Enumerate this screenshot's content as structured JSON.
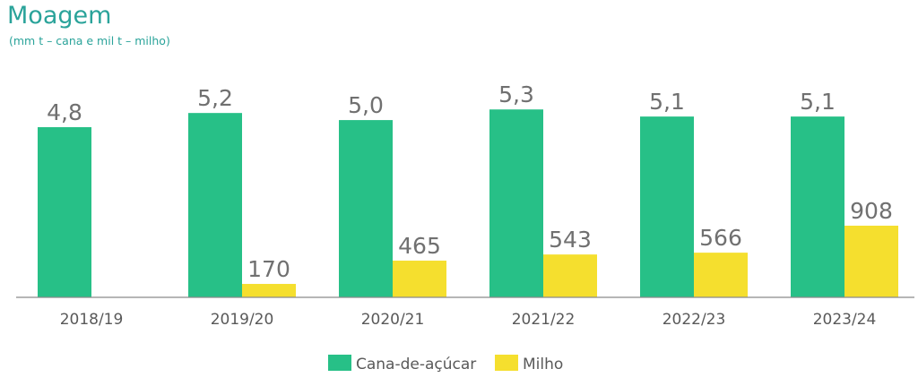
{
  "chart_data": {
    "type": "bar",
    "title": "Moagem",
    "subtitle": "(mm t – cana e mil t – milho)",
    "categories": [
      "2018/19",
      "2019/20",
      "2020/21",
      "2021/22",
      "2022/23",
      "2023/24"
    ],
    "series": [
      {
        "name": "Cana-de-açúcar",
        "color": "#27c087",
        "values": [
          4.8,
          5.2,
          5.0,
          5.3,
          5.1,
          5.1
        ],
        "labels": [
          "4,8",
          "5,2",
          "5,0",
          "5,3",
          "5,1",
          "5,1"
        ]
      },
      {
        "name": "Milho",
        "color": "#f5df2e",
        "values": [
          null,
          170,
          465,
          543,
          566,
          908
        ],
        "labels": [
          "",
          "170",
          "465",
          "543",
          "566",
          "908"
        ]
      }
    ],
    "grid": false,
    "legend": "bottom-center"
  }
}
